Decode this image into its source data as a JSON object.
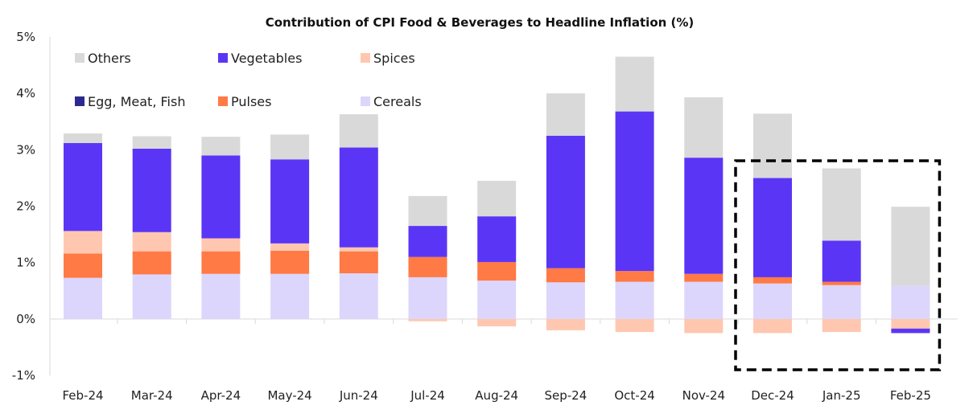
{
  "chart_data": {
    "type": "bar",
    "stacked": true,
    "title": "Contribution of CPI Food & Beverages to Headline Inflation (%)",
    "xlabel": "",
    "ylabel": "",
    "ylim": [
      -1,
      5
    ],
    "yticks": [
      -1,
      0,
      1,
      2,
      3,
      4,
      5
    ],
    "ytick_labels": [
      "-1%",
      "0%",
      "1%",
      "2%",
      "3%",
      "4%",
      "5%"
    ],
    "grid": false,
    "legend_position": "top-left",
    "categories": [
      "Feb-24",
      "Mar-24",
      "Apr-24",
      "May-24",
      "Jun-24",
      "Jul-24",
      "Aug-24",
      "Sep-24",
      "Oct-24",
      "Nov-24",
      "Dec-24",
      "Jan-25",
      "Feb-25"
    ],
    "series": [
      {
        "name": "Cereals",
        "color": "#DCD6FC",
        "values": [
          0.73,
          0.79,
          0.8,
          0.8,
          0.81,
          0.74,
          0.68,
          0.65,
          0.66,
          0.66,
          0.63,
          0.6,
          0.59
        ]
      },
      {
        "name": "Pulses",
        "color": "#FF7A45",
        "values": [
          0.43,
          0.41,
          0.4,
          0.41,
          0.39,
          0.36,
          0.33,
          0.25,
          0.19,
          0.14,
          0.11,
          0.06,
          0.0
        ]
      },
      {
        "name": "Egg, Meat, Fish",
        "color": "#2B2B8F",
        "values": [
          0.0,
          0.0,
          0.0,
          0.0,
          0.0,
          0.0,
          0.0,
          0.0,
          0.0,
          0.0,
          0.0,
          0.0,
          0.0
        ]
      },
      {
        "name": "Spices",
        "color": "#FFC7B0",
        "values": [
          0.4,
          0.34,
          0.23,
          0.13,
          0.07,
          -0.04,
          -0.13,
          -0.2,
          -0.23,
          -0.25,
          -0.25,
          -0.23,
          -0.17
        ]
      },
      {
        "name": "Vegetables",
        "color": "#5B35F5",
        "values": [
          1.56,
          1.48,
          1.47,
          1.49,
          1.77,
          0.55,
          0.81,
          2.35,
          2.83,
          2.06,
          1.76,
          0.73,
          -0.08
        ]
      },
      {
        "name": "Others",
        "color": "#D9D9D9",
        "values": [
          0.17,
          0.22,
          0.33,
          0.44,
          0.59,
          0.53,
          0.63,
          0.75,
          0.97,
          1.07,
          1.14,
          1.28,
          1.4
        ]
      }
    ],
    "legend_order": [
      "Others",
      "Vegetables",
      "Spices",
      "Egg, Meat, Fish",
      "Pulses",
      "Cereals"
    ],
    "highlight_box": {
      "categories": [
        "Dec-24",
        "Feb-25"
      ],
      "style": "dashed",
      "color": "#000000"
    }
  }
}
